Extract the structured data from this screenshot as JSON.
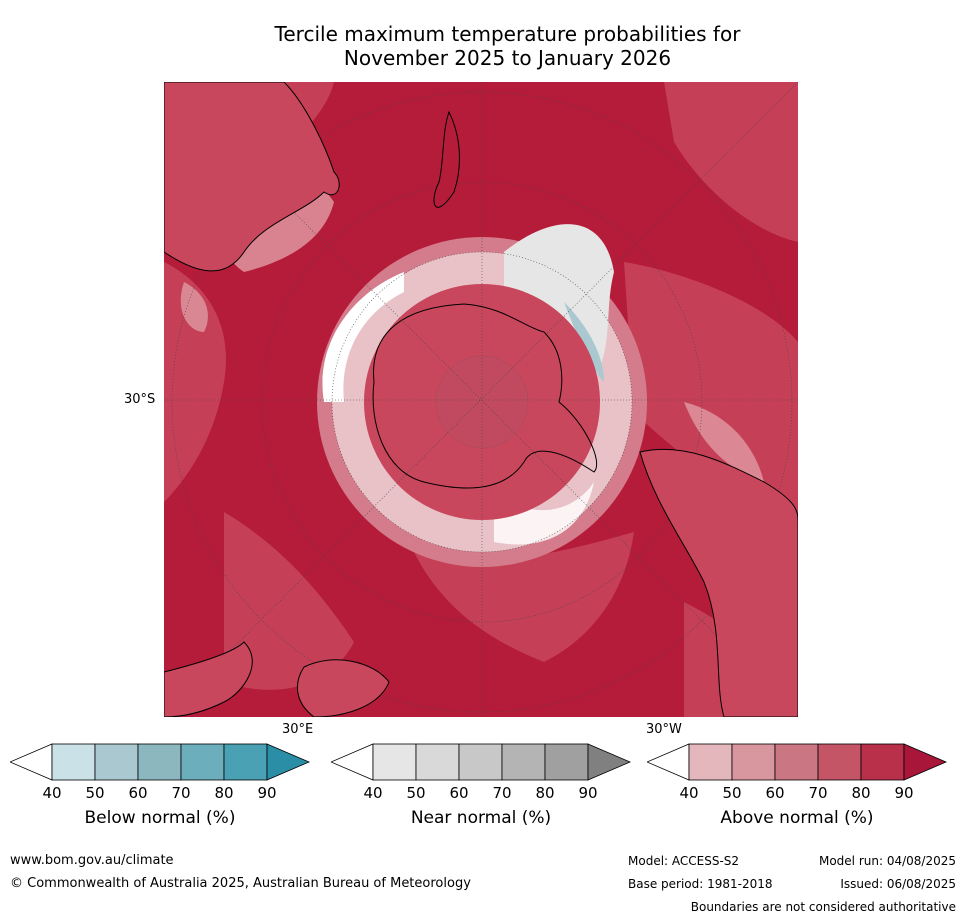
{
  "title": {
    "line1": "Tercile maximum temperature probabilities for",
    "line2": "November 2025 to January 2026"
  },
  "map": {
    "lat_label": "30°S",
    "lon_label_east": "30°E",
    "lon_label_west": "30°W"
  },
  "colorbars": [
    {
      "label": "Below normal (%)",
      "ticks": [
        "40",
        "50",
        "60",
        "70",
        "80",
        "90"
      ],
      "colors": [
        "#ffffff",
        "#c9e1e7",
        "#a9c8cf",
        "#8cb7bf",
        "#6daebc",
        "#4aa1b3",
        "#2a8fa6"
      ]
    },
    {
      "label": "Near normal (%)",
      "ticks": [
        "40",
        "50",
        "60",
        "70",
        "80",
        "90"
      ],
      "colors": [
        "#ffffff",
        "#e6e6e6",
        "#d9d9d9",
        "#c8c8c8",
        "#b4b4b4",
        "#a0a0a0",
        "#808080"
      ]
    },
    {
      "label": "Above normal (%)",
      "ticks": [
        "40",
        "50",
        "60",
        "70",
        "80",
        "90"
      ],
      "colors": [
        "#ffffff",
        "#e4b7bd",
        "#d8979f",
        "#cb7683",
        "#c35567",
        "#b8304a",
        "#a8163a"
      ]
    }
  ],
  "footer": {
    "url": "www.bom.gov.au/climate",
    "copyright": "© Commonwealth of Australia 2025, Australian Bureau of Meteorology",
    "model": "Model: ACCESS-S2",
    "base_period": "Base period: 1981-2018",
    "model_run": "Model run: 04/08/2025",
    "issued": "Issued: 06/08/2025",
    "disclaimer": "Boundaries are not considered authoritative"
  }
}
